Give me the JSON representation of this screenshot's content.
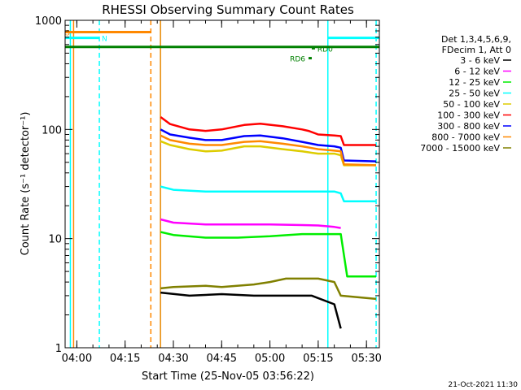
{
  "chart_data": {
    "type": "line",
    "title": "RHESSI Observing Summary Count Rates",
    "xlabel": "Start Time (25-Nov-05 03:56:22)",
    "ylabel": "Count Rate (s⁻¹ detector⁻¹)",
    "y_scale": "log",
    "ylim": [
      1,
      1000
    ],
    "xlim": [
      "03:56:22",
      "05:34:00"
    ],
    "x_ticks": [
      "04:00",
      "04:15",
      "04:30",
      "04:45",
      "05:00",
      "05:15",
      "05:30"
    ],
    "y_ticks": [
      "1",
      "10",
      "100",
      "1000"
    ],
    "legend_position": "right",
    "legend_header": [
      "Det 1,3,4,5,6,9,",
      "FDecim 1, Att 0"
    ],
    "footer_date": "21-Oct-2021 11:30",
    "series": [
      {
        "name": "3 - 6 keV",
        "color": "#000000",
        "x": [
          "04:26",
          "04:35",
          "04:45",
          "04:55",
          "05:05",
          "05:13",
          "05:20",
          "05:22"
        ],
        "values": [
          3.2,
          3.0,
          3.1,
          3.0,
          3.0,
          3.0,
          2.5,
          1.5
        ]
      },
      {
        "name": "6 - 12 keV",
        "color": "#ff00ff",
        "x": [
          "04:26",
          "04:30",
          "04:40",
          "04:50",
          "05:00",
          "05:10",
          "05:15",
          "05:20",
          "05:22"
        ],
        "values": [
          15,
          14,
          13.5,
          13.5,
          13.5,
          13.3,
          13.2,
          12.8,
          12.5
        ]
      },
      {
        "name": "12 - 25 keV",
        "color": "#00ee00",
        "x": [
          "04:26",
          "04:30",
          "04:40",
          "04:50",
          "05:00",
          "05:10",
          "05:15",
          "05:20",
          "05:22",
          "05:24",
          "05:33"
        ],
        "values": [
          11.5,
          10.8,
          10.2,
          10.2,
          10.5,
          11.0,
          11.0,
          11.0,
          11.0,
          4.5,
          4.5
        ]
      },
      {
        "name": "25 - 50 keV",
        "color": "#00ffff",
        "x": [
          "04:26",
          "04:30",
          "04:40",
          "04:50",
          "05:00",
          "05:10",
          "05:15",
          "05:20",
          "05:22",
          "05:23",
          "05:33"
        ],
        "values": [
          30,
          28,
          27,
          27,
          27,
          27,
          27,
          27,
          26,
          22,
          22
        ]
      },
      {
        "name": "50 - 100 keV",
        "color": "#ddcc00",
        "x": [
          "04:26",
          "04:29",
          "04:35",
          "04:40",
          "04:45",
          "04:52",
          "04:57",
          "05:04",
          "05:10",
          "05:15",
          "05:20",
          "05:22",
          "05:23",
          "05:33"
        ],
        "values": [
          78,
          72,
          66,
          63,
          64,
          70,
          70,
          66,
          63,
          60,
          60,
          58,
          47,
          47
        ]
      },
      {
        "name": "100 - 300 keV",
        "color": "#ff0000",
        "x": [
          "04:26",
          "04:29",
          "04:35",
          "04:40",
          "04:45",
          "04:52",
          "04:57",
          "05:04",
          "05:10",
          "05:12",
          "05:15",
          "05:20",
          "05:22",
          "05:23",
          "05:33"
        ],
        "values": [
          130,
          112,
          100,
          97,
          100,
          110,
          113,
          107,
          100,
          97,
          90,
          88,
          87,
          72,
          72
        ]
      },
      {
        "name": "300 - 800 keV",
        "color": "#0000ff",
        "x": [
          "04:26",
          "04:29",
          "04:35",
          "04:40",
          "04:45",
          "04:52",
          "04:57",
          "05:04",
          "05:10",
          "05:15",
          "05:20",
          "05:22",
          "05:23",
          "05:33"
        ],
        "values": [
          100,
          90,
          84,
          80,
          80,
          87,
          88,
          83,
          77,
          72,
          70,
          68,
          52,
          51
        ]
      },
      {
        "name": "800 - 7000 keV",
        "color": "#ff8800",
        "x": [
          "04:26",
          "04:29",
          "04:35",
          "04:40",
          "04:45",
          "04:52",
          "04:57",
          "05:04",
          "05:10",
          "05:15",
          "05:20",
          "05:22",
          "05:23",
          "05:33"
        ],
        "values": [
          88,
          80,
          74,
          72,
          72,
          77,
          78,
          74,
          70,
          66,
          64,
          63,
          48,
          47
        ]
      },
      {
        "name": "7000 - 15000 keV",
        "color": "#808000",
        "x": [
          "04:26",
          "04:30",
          "04:40",
          "04:45",
          "04:55",
          "05:00",
          "05:05",
          "05:10",
          "05:15",
          "05:20",
          "05:22",
          "05:33"
        ],
        "values": [
          3.5,
          3.6,
          3.7,
          3.6,
          3.8,
          4.0,
          4.3,
          4.3,
          4.3,
          4.0,
          3.0,
          2.8
        ]
      }
    ],
    "vertical_markers": [
      {
        "time": "03:58",
        "color": "#00ffff",
        "style": "solid"
      },
      {
        "time": "03:59",
        "color": "#ff8800",
        "style": "solid"
      },
      {
        "time": "04:07",
        "color": "#00ffff",
        "style": "dashed"
      },
      {
        "time": "04:23",
        "color": "#ff8800",
        "style": "dashed"
      },
      {
        "time": "04:26",
        "color": "#00ffff",
        "style": "solid"
      },
      {
        "time": "04:26",
        "color": "#ff8800",
        "style": "solid"
      },
      {
        "time": "05:18",
        "color": "#00ffff",
        "style": "solid"
      },
      {
        "time": "05:33",
        "color": "#00ffff",
        "style": "dashed"
      }
    ],
    "flag_bars": [
      {
        "label": "S",
        "color": "#ff8800",
        "y": 780,
        "x0": "03:56:22",
        "x1": "04:23"
      },
      {
        "label": "N",
        "color": "#00ffff",
        "y": 690,
        "x0": "03:56:22",
        "x1": "04:07"
      },
      {
        "label": "",
        "color": "#00ffff",
        "y": 690,
        "x0": "05:18",
        "x1": "05:34"
      },
      {
        "label": "",
        "color": "#008000",
        "y": 570,
        "x0": "03:56:22",
        "x1": "05:34"
      },
      {
        "label": "RD0",
        "color": "#008000",
        "y": 555,
        "x0": "05:13",
        "x1": "05:14"
      },
      {
        "label": "RD6",
        "color": "#008000",
        "y": 450,
        "x0": "05:12",
        "x1": "05:13"
      }
    ]
  }
}
